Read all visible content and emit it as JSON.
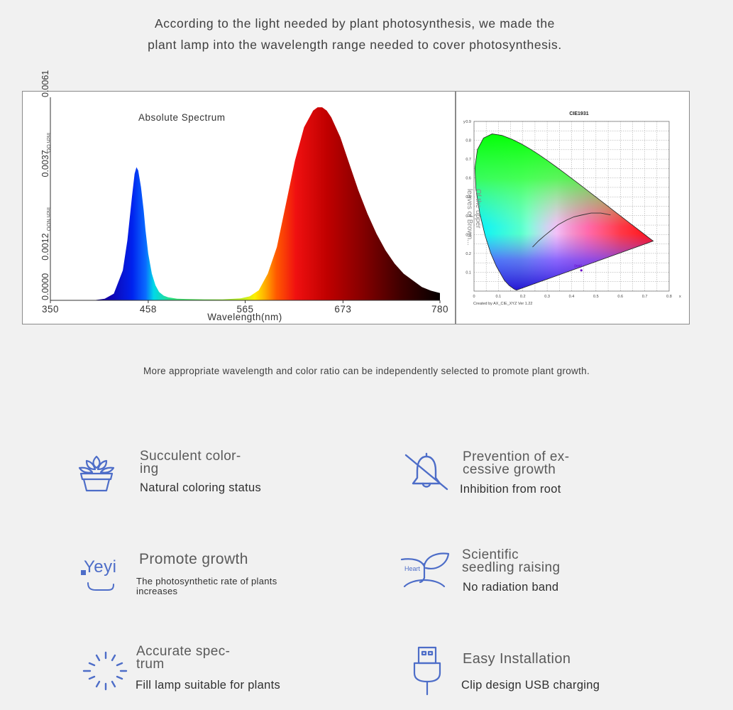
{
  "intro": {
    "line1": "According to the light needed by plant photosynthesis, we made the",
    "line2": "plant lamp into the wavelength range needed to cover photosynthesis."
  },
  "chart_data": [
    {
      "type": "area",
      "title": "Absolute Spectrum",
      "xlabel": "Wavelength(nm)",
      "ylabel": "",
      "xlim": [
        350,
        780
      ],
      "ylim": [
        0,
        0.0061
      ],
      "x_ticks": [
        "350",
        "458",
        "565",
        "673",
        "780"
      ],
      "y_ticks": [
        "0.0000",
        "0.0012",
        "0.0037",
        "0.0061"
      ],
      "y_axis_annotations": [
        "Inch OO",
        "Inch NOO"
      ],
      "fill": "wavelength-color gradient",
      "x": [
        380,
        400,
        410,
        420,
        430,
        435,
        440,
        443,
        445,
        447,
        450,
        453,
        455,
        458,
        462,
        466,
        470,
        475,
        480,
        490,
        500,
        520,
        540,
        560,
        570,
        580,
        590,
        600,
        610,
        620,
        630,
        640,
        645,
        650,
        655,
        660,
        670,
        680,
        690,
        700,
        710,
        720,
        730,
        740,
        750,
        760,
        770,
        780
      ],
      "y": [
        0,
        1e-05,
        5e-05,
        0.0002,
        0.0009,
        0.0018,
        0.0031,
        0.0038,
        0.004,
        0.0039,
        0.0034,
        0.0027,
        0.0021,
        0.0014,
        0.0008,
        0.00045,
        0.00025,
        0.00014,
        9e-05,
        5e-05,
        4e-05,
        3e-05,
        3e-05,
        6e-05,
        0.00012,
        0.0003,
        0.0008,
        0.0016,
        0.0029,
        0.0042,
        0.0052,
        0.0057,
        0.0058,
        0.0058,
        0.0057,
        0.0055,
        0.0049,
        0.0041,
        0.0033,
        0.0026,
        0.002,
        0.0015,
        0.0011,
        0.0008,
        0.0006,
        0.0004,
        0.00029,
        0.00022
      ]
    },
    {
      "type": "scatter",
      "title": "CIE1931",
      "xlabel": "x",
      "ylabel": "y",
      "xlim": [
        0,
        0.8
      ],
      "ylim": [
        0,
        0.9
      ],
      "x_ticks": [
        "0",
        "0.1",
        "0.2",
        "0.3",
        "0.4",
        "0.5",
        "0.6",
        "0.7",
        "0.8"
      ],
      "y_ticks": [
        "0.1",
        "0.2",
        "0.3",
        "0.4",
        "0.5",
        "0.6",
        "0.7",
        "0.8",
        "0.9"
      ],
      "locus": [
        [
          0.1741,
          0.005
        ],
        [
          0.1644,
          0.0109
        ],
        [
          0.144,
          0.0297
        ],
        [
          0.1241,
          0.0578
        ],
        [
          0.0913,
          0.1327
        ],
        [
          0.0687,
          0.2007
        ],
        [
          0.0454,
          0.295
        ],
        [
          0.0235,
          0.4127
        ],
        [
          0.0082,
          0.5384
        ],
        [
          0.0039,
          0.6548
        ],
        [
          0.0139,
          0.7502
        ],
        [
          0.0389,
          0.812
        ],
        [
          0.0743,
          0.8338
        ],
        [
          0.1142,
          0.8262
        ],
        [
          0.1547,
          0.8059
        ],
        [
          0.1929,
          0.7816
        ],
        [
          0.2296,
          0.7543
        ],
        [
          0.2658,
          0.7243
        ],
        [
          0.3016,
          0.6923
        ],
        [
          0.3373,
          0.6589
        ],
        [
          0.3731,
          0.6245
        ],
        [
          0.4087,
          0.5896
        ],
        [
          0.4441,
          0.5547
        ],
        [
          0.4788,
          0.5202
        ],
        [
          0.5125,
          0.4866
        ],
        [
          0.5448,
          0.4544
        ],
        [
          0.5752,
          0.4242
        ],
        [
          0.6029,
          0.3965
        ],
        [
          0.627,
          0.3725
        ],
        [
          0.6482,
          0.3514
        ],
        [
          0.6658,
          0.334
        ],
        [
          0.6801,
          0.3197
        ],
        [
          0.6915,
          0.3083
        ],
        [
          0.7006,
          0.2993
        ],
        [
          0.714,
          0.2859
        ],
        [
          0.7347,
          0.2653
        ]
      ],
      "planckian": [
        [
          0.24,
          0.234
        ],
        [
          0.265,
          0.267
        ],
        [
          0.29,
          0.295
        ],
        [
          0.31,
          0.316
        ],
        [
          0.345,
          0.352
        ],
        [
          0.38,
          0.377
        ],
        [
          0.41,
          0.394
        ],
        [
          0.44,
          0.403
        ],
        [
          0.48,
          0.414
        ],
        [
          0.52,
          0.414
        ],
        [
          0.56,
          0.404
        ]
      ],
      "point": [
        0.44,
        0.11
      ],
      "point_label": "(xxx)",
      "overlay_text": [
        "Of the upper",
        "leaves of Brown..."
      ],
      "footer": "Created by AX_CIE_XYZ Ver 1.22"
    }
  ],
  "sub_caption": "More appropriate wavelength and color ratio can be independently selected to promote plant growth.",
  "features": [
    {
      "icon": "succulent-icon",
      "title_lines": [
        "Succulent color-",
        "ing"
      ],
      "desc": "Natural coloring status"
    },
    {
      "icon": "bell-off-icon",
      "title_lines": [
        "Prevention of ex-",
        "cessive growth"
      ],
      "desc": "Inhibition from root"
    },
    {
      "icon": "brand-logo-icon",
      "brand": "Yeyi",
      "title_lines": [
        "Promote growth"
      ],
      "desc_lines": [
        "The photosynthetic rate of plants",
        "increases"
      ]
    },
    {
      "icon": "seedling-icon",
      "icon_text": "Heart",
      "title_lines": [
        "Scientific",
        "seedling raising"
      ],
      "desc": "No radiation band"
    },
    {
      "icon": "loading-spinner-icon",
      "title_lines": [
        "Accurate spec-",
        "trum"
      ],
      "desc": "Fill lamp suitable for plants"
    },
    {
      "icon": "usb-plug-icon",
      "title_lines": [
        "Easy Installation"
      ],
      "desc": "Clip design USB charging"
    }
  ],
  "colors": {
    "icon": "#4d6dc8",
    "background": "#f1f1f1",
    "text": "#3f3f3f"
  }
}
